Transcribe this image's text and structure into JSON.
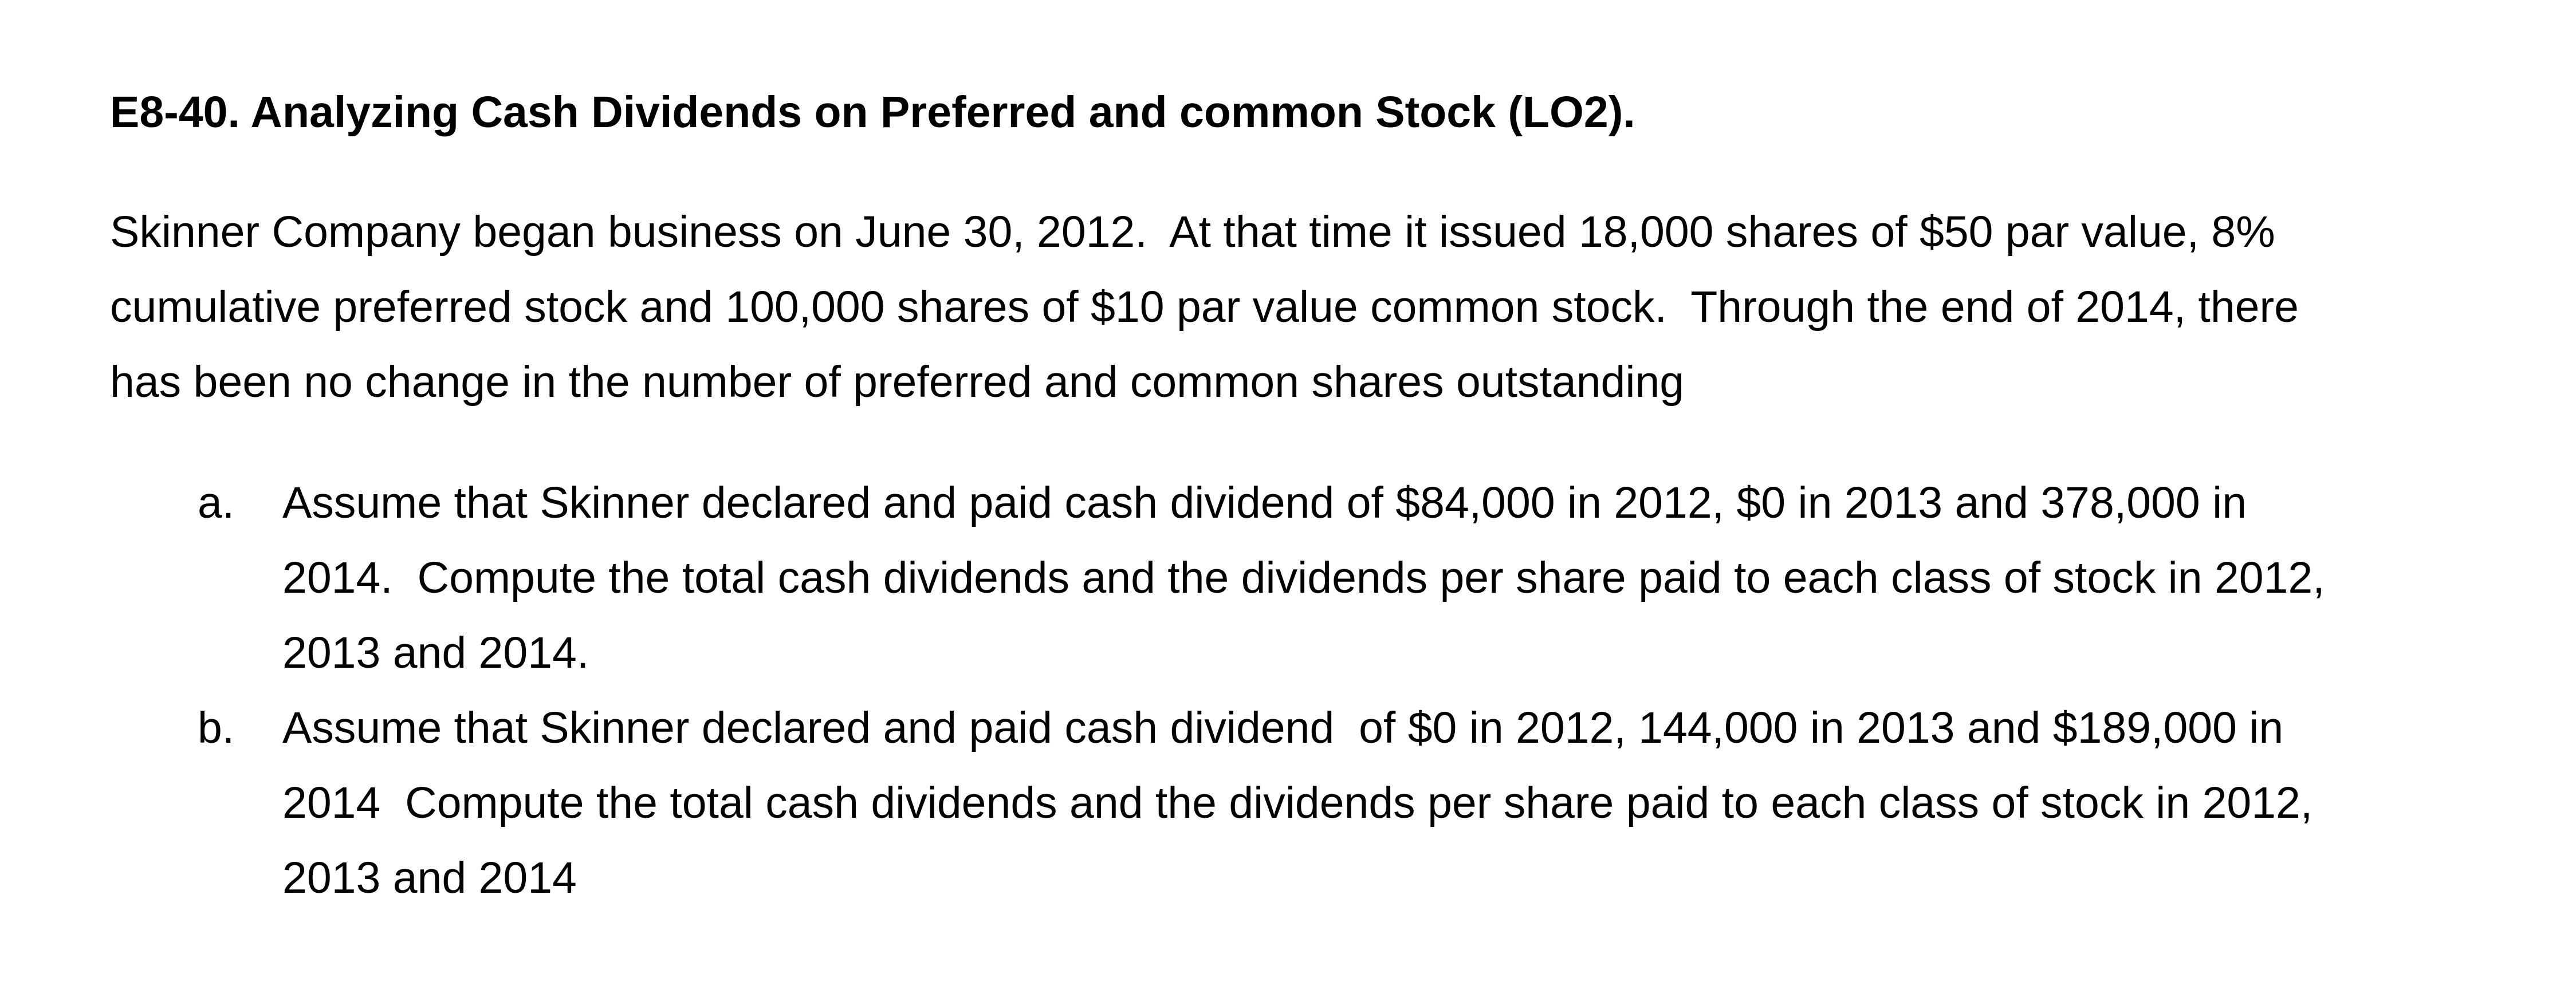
{
  "page": {
    "heading": "E8-40. Analyzing Cash Dividends on Preferred and common Stock (LO2).",
    "intro_lines": [
      "Skinner Company began business on June 30, 2012.  At that time it issued 18,000 shares of $50 par value, 8%",
      "cumulative preferred stock and 100,000 shares of $10 par value common stock.  Through the end of 2014, there",
      "has been no change in the number of preferred and common shares outstanding"
    ],
    "items": [
      {
        "marker": "a.",
        "lines": [
          "Assume that Skinner declared and paid cash dividend of $84,000 in 2012, $0 in 2013 and 378,000 in",
          "2014.  Compute the total cash dividends and the dividends per share paid to each class of stock in 2012,",
          "2013 and 2014."
        ]
      },
      {
        "marker": "b.",
        "lines": [
          "Assume that Skinner declared and paid cash dividend  of $0 in 2012, 144,000 in 2013 and $189,000 in",
          "2014  Compute the total cash dividends and the dividends per share paid to each class of stock in 2012,",
          "2013 and 2014"
        ]
      }
    ]
  },
  "colors": {
    "text": "#000000",
    "background": "#ffffff"
  }
}
